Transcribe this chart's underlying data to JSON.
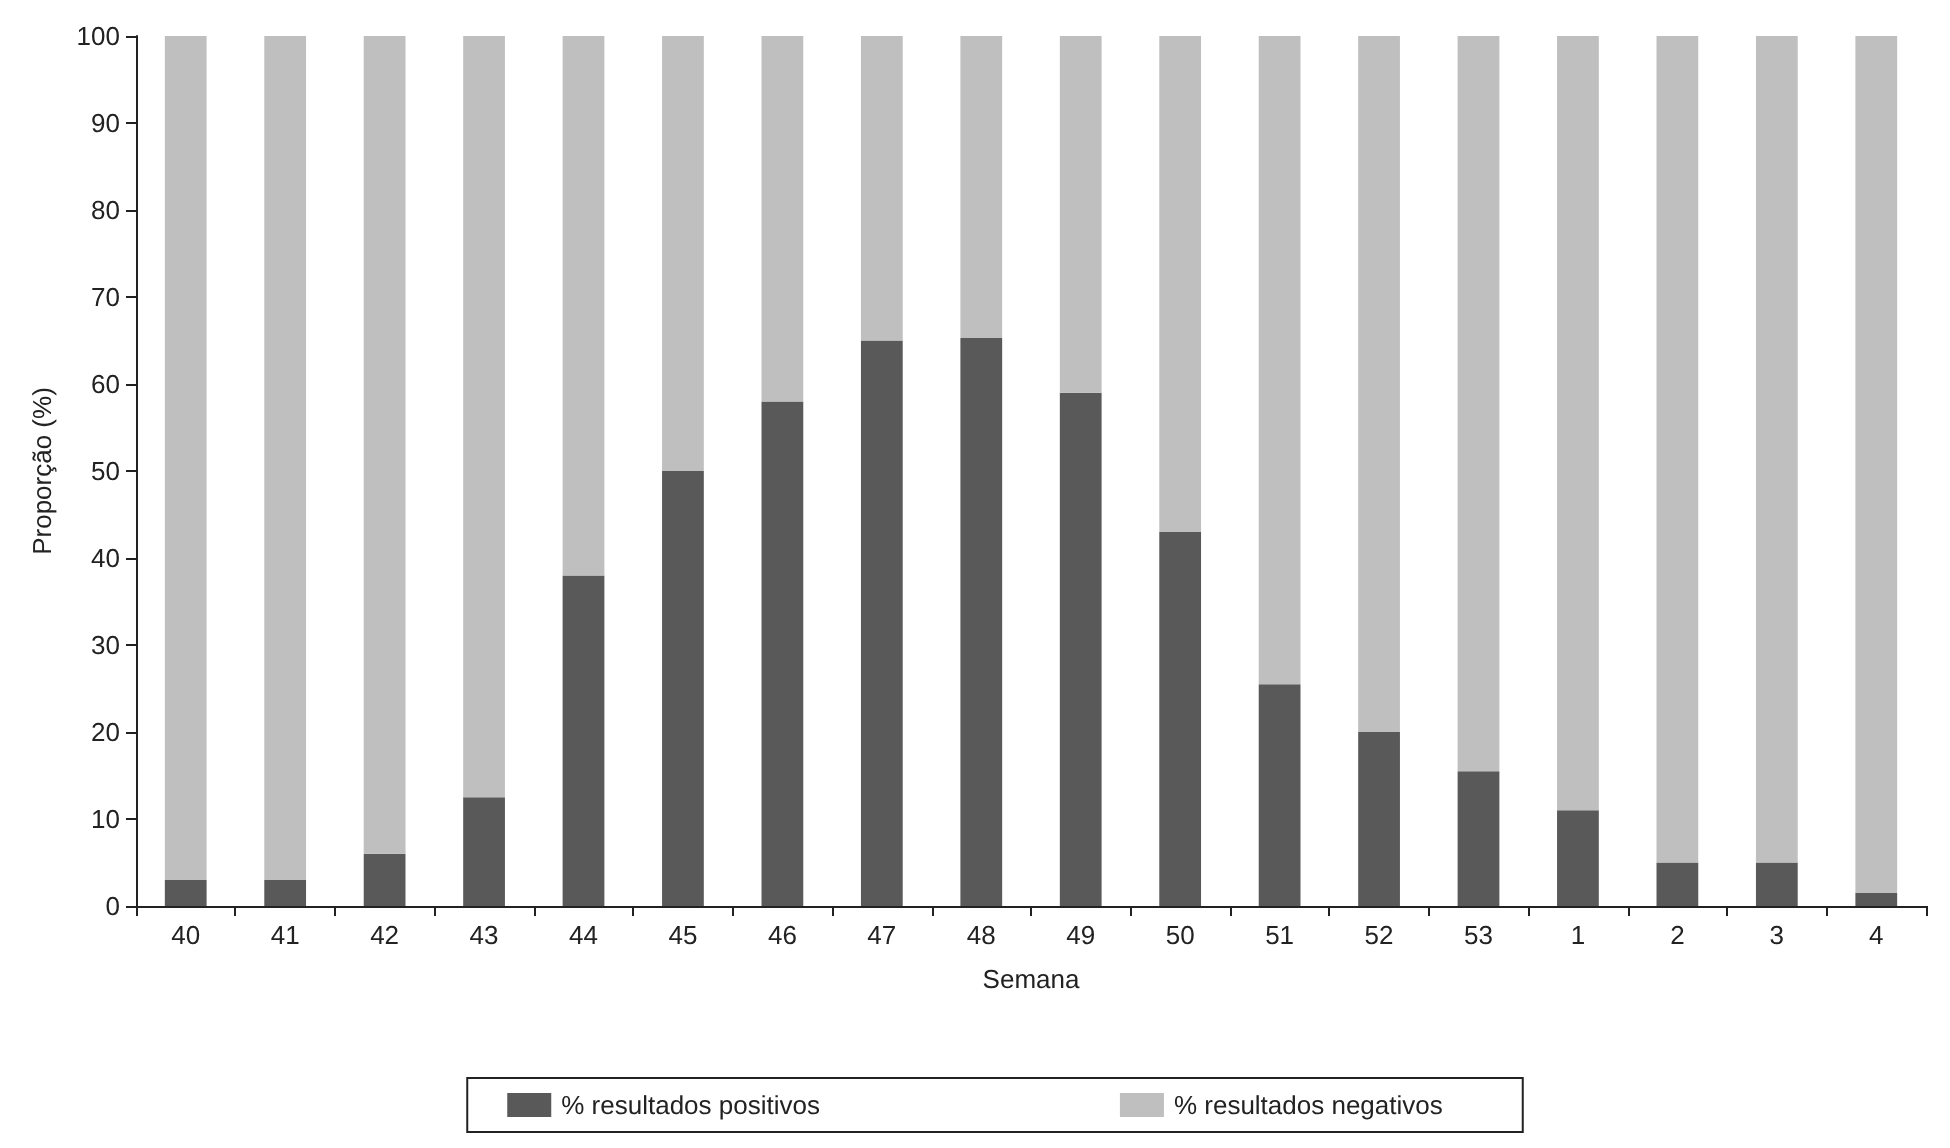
{
  "chart_data": {
    "type": "bar",
    "stacked": true,
    "xlabel": "Semana",
    "ylabel": "Proporção (%)",
    "categories": [
      "40",
      "41",
      "42",
      "43",
      "44",
      "45",
      "46",
      "47",
      "48",
      "49",
      "50",
      "51",
      "52",
      "53",
      "1",
      "2",
      "3",
      "4"
    ],
    "series": [
      {
        "name": "% resultados positivos",
        "color": "#595959",
        "values": [
          3,
          3,
          6,
          12.5,
          38,
          50,
          58,
          65,
          65.3,
          59,
          43,
          25.5,
          20,
          15.5,
          11,
          5,
          5,
          1.5
        ]
      },
      {
        "name": "% resultados negativos",
        "color": "#bfbfbf",
        "values": [
          97,
          97,
          94,
          87.5,
          62,
          50,
          42,
          35,
          34.7,
          41,
          57,
          74.5,
          80,
          84.5,
          89,
          95,
          95,
          98.5
        ]
      }
    ],
    "ylim": [
      0,
      100
    ],
    "yticks": [
      0,
      10,
      20,
      30,
      40,
      50,
      60,
      70,
      80,
      90,
      100
    ],
    "grid": false,
    "legend": "bottom"
  }
}
